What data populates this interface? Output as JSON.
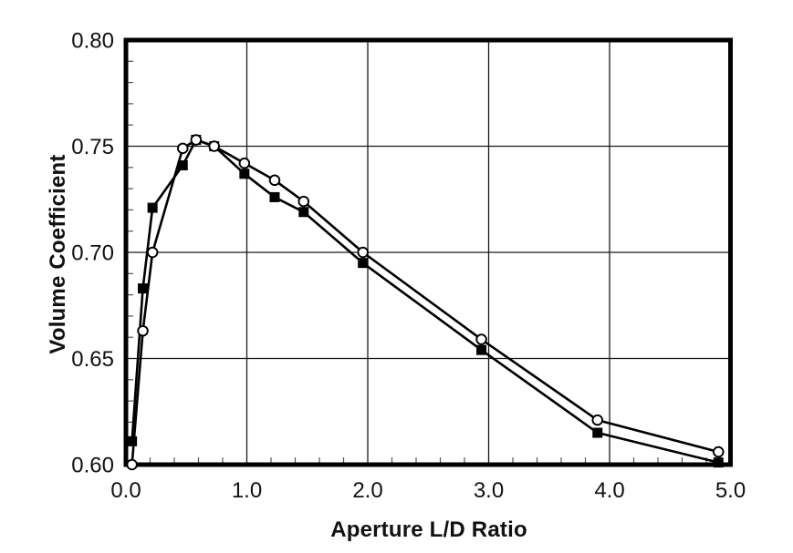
{
  "figure": {
    "background": "#ffffff",
    "ink_color": "#000000"
  },
  "chart_data": {
    "type": "line",
    "title": "",
    "xlabel": "Aperture L/D Ratio",
    "ylabel": "Volume Coefficient",
    "xlim": [
      0.0,
      5.0
    ],
    "ylim": [
      0.6,
      0.8
    ],
    "x_ticks": {
      "values": [
        0.0,
        1.0,
        2.0,
        3.0,
        4.0,
        5.0
      ],
      "labels": [
        "0.0",
        "1.0",
        "2.0",
        "3.0",
        "4.0",
        "5.0"
      ],
      "minor_step": 0.2
    },
    "y_ticks": {
      "values": [
        0.6,
        0.65,
        0.7,
        0.75,
        0.8
      ],
      "labels": [
        "0.60",
        "0.65",
        "0.70",
        "0.75",
        "0.80"
      ],
      "minor_step": 0.01
    },
    "grid": {
      "major": true,
      "minor": false,
      "color": "#1a1a1a"
    },
    "legend": "none",
    "x": [
      0.05,
      0.14,
      0.22,
      0.47,
      0.58,
      0.73,
      0.98,
      1.23,
      1.47,
      1.96,
      2.94,
      3.9,
      4.9
    ],
    "series": [
      {
        "name": "filled-square-series",
        "marker": "filled-square",
        "color": "#000000",
        "values": [
          0.611,
          0.683,
          0.721,
          0.741,
          0.753,
          0.75,
          0.737,
          0.726,
          0.719,
          0.695,
          0.654,
          0.615,
          0.601
        ]
      },
      {
        "name": "open-circle-series",
        "marker": "open-circle",
        "color": "#000000",
        "values": [
          0.6,
          0.663,
          0.7,
          0.749,
          0.753,
          0.75,
          0.742,
          0.734,
          0.724,
          0.7,
          0.659,
          0.621,
          0.606
        ]
      }
    ]
  }
}
